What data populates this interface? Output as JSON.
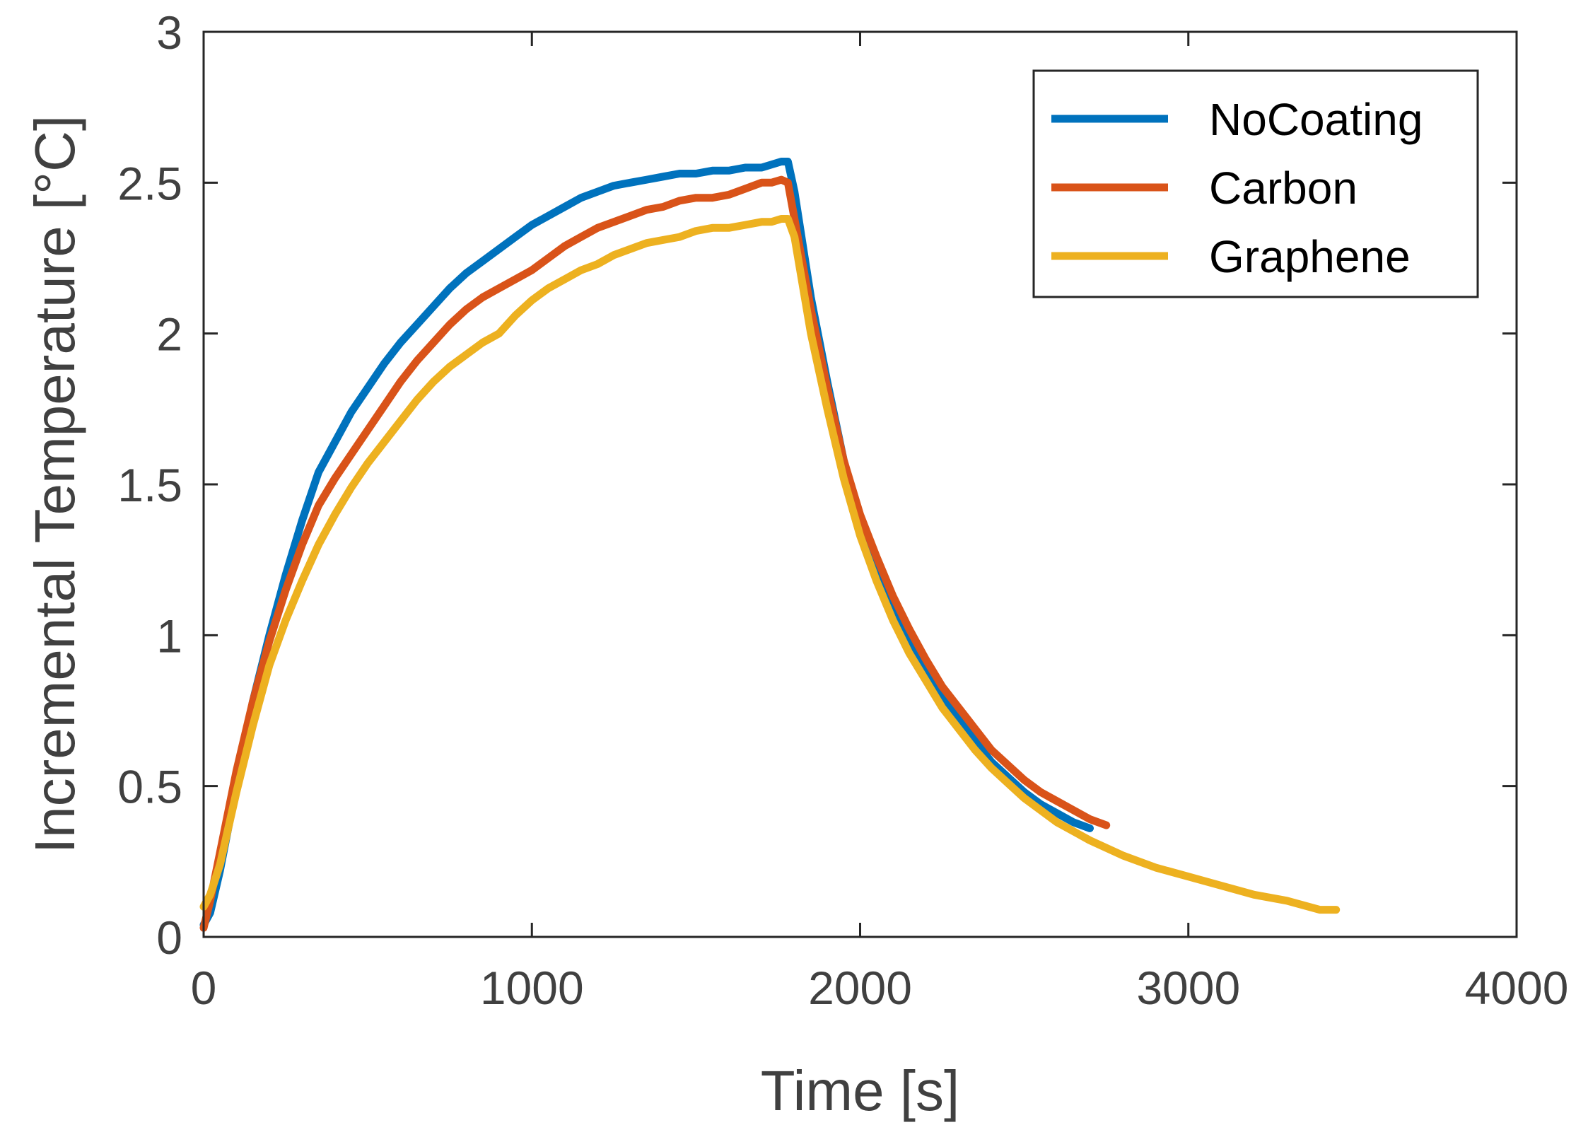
{
  "chart_data": {
    "type": "line",
    "title": "",
    "xlabel": "Time [s]",
    "ylabel": "Incremental Temperature [°C]",
    "xlim": [
      0,
      4000
    ],
    "ylim": [
      0,
      3
    ],
    "xticks": [
      0,
      1000,
      2000,
      3000,
      4000
    ],
    "yticks": [
      0,
      0.5,
      1,
      1.5,
      2,
      2.5,
      3
    ],
    "xtick_labels": [
      "0",
      "1000",
      "2000",
      "3000",
      "4000"
    ],
    "ytick_labels": [
      "0",
      "0.5",
      "1",
      "1.5",
      "2",
      "2.5",
      "3"
    ],
    "grid": false,
    "legend": {
      "position": "top-right",
      "entries": [
        "NoCoating",
        "Carbon",
        "Graphene"
      ]
    },
    "series": [
      {
        "name": "NoCoating",
        "color": "#0072BD",
        "x": [
          0,
          20,
          50,
          100,
          150,
          200,
          250,
          300,
          350,
          400,
          450,
          500,
          550,
          600,
          650,
          700,
          750,
          800,
          850,
          900,
          950,
          1000,
          1050,
          1100,
          1150,
          1200,
          1250,
          1300,
          1350,
          1400,
          1450,
          1500,
          1550,
          1600,
          1650,
          1700,
          1730,
          1760,
          1780,
          1800,
          1850,
          1900,
          1950,
          2000,
          2050,
          2100,
          2150,
          2200,
          2250,
          2300,
          2350,
          2400,
          2450,
          2500,
          2550,
          2600,
          2650,
          2700
        ],
        "y": [
          0.04,
          0.08,
          0.22,
          0.5,
          0.78,
          1.0,
          1.2,
          1.38,
          1.54,
          1.64,
          1.74,
          1.82,
          1.9,
          1.97,
          2.03,
          2.09,
          2.15,
          2.2,
          2.24,
          2.28,
          2.32,
          2.36,
          2.39,
          2.42,
          2.45,
          2.47,
          2.49,
          2.5,
          2.51,
          2.52,
          2.53,
          2.53,
          2.54,
          2.54,
          2.55,
          2.55,
          2.56,
          2.57,
          2.57,
          2.47,
          2.12,
          1.84,
          1.58,
          1.38,
          1.22,
          1.09,
          0.97,
          0.88,
          0.8,
          0.72,
          0.65,
          0.58,
          0.53,
          0.48,
          0.44,
          0.41,
          0.38,
          0.36
        ]
      },
      {
        "name": "Carbon",
        "color": "#D95319",
        "x": [
          0,
          20,
          50,
          100,
          150,
          200,
          250,
          300,
          350,
          400,
          450,
          500,
          550,
          600,
          650,
          700,
          750,
          800,
          850,
          900,
          950,
          1000,
          1050,
          1100,
          1150,
          1200,
          1250,
          1300,
          1350,
          1400,
          1450,
          1500,
          1550,
          1600,
          1650,
          1700,
          1730,
          1760,
          1780,
          1800,
          1850,
          1900,
          1950,
          2000,
          2050,
          2100,
          2150,
          2200,
          2250,
          2300,
          2350,
          2400,
          2450,
          2500,
          2550,
          2600,
          2650,
          2700,
          2750
        ],
        "y": [
          0.03,
          0.12,
          0.28,
          0.55,
          0.78,
          0.98,
          1.15,
          1.3,
          1.43,
          1.52,
          1.6,
          1.68,
          1.76,
          1.84,
          1.91,
          1.97,
          2.03,
          2.08,
          2.12,
          2.15,
          2.18,
          2.21,
          2.25,
          2.29,
          2.32,
          2.35,
          2.37,
          2.39,
          2.41,
          2.42,
          2.44,
          2.45,
          2.45,
          2.46,
          2.48,
          2.5,
          2.5,
          2.51,
          2.5,
          2.38,
          2.08,
          1.82,
          1.58,
          1.4,
          1.26,
          1.13,
          1.02,
          0.92,
          0.83,
          0.76,
          0.69,
          0.62,
          0.57,
          0.52,
          0.48,
          0.45,
          0.42,
          0.39,
          0.37
        ]
      },
      {
        "name": "Graphene",
        "color": "#EDB120",
        "x": [
          0,
          20,
          50,
          100,
          150,
          200,
          250,
          300,
          350,
          400,
          450,
          500,
          550,
          600,
          650,
          700,
          750,
          800,
          850,
          900,
          950,
          1000,
          1050,
          1100,
          1150,
          1200,
          1250,
          1300,
          1350,
          1400,
          1450,
          1500,
          1550,
          1600,
          1650,
          1700,
          1730,
          1760,
          1780,
          1800,
          1850,
          1900,
          1950,
          2000,
          2050,
          2100,
          2150,
          2200,
          2250,
          2300,
          2350,
          2400,
          2450,
          2500,
          2550,
          2600,
          2650,
          2700,
          2800,
          2900,
          3000,
          3100,
          3200,
          3300,
          3400,
          3450
        ],
        "y": [
          0.1,
          0.14,
          0.24,
          0.48,
          0.7,
          0.9,
          1.05,
          1.18,
          1.3,
          1.4,
          1.49,
          1.57,
          1.64,
          1.71,
          1.78,
          1.84,
          1.89,
          1.93,
          1.97,
          2.0,
          2.06,
          2.11,
          2.15,
          2.18,
          2.21,
          2.23,
          2.26,
          2.28,
          2.3,
          2.31,
          2.32,
          2.34,
          2.35,
          2.35,
          2.36,
          2.37,
          2.37,
          2.38,
          2.38,
          2.32,
          2.0,
          1.75,
          1.52,
          1.33,
          1.18,
          1.05,
          0.94,
          0.85,
          0.76,
          0.69,
          0.62,
          0.56,
          0.51,
          0.46,
          0.42,
          0.38,
          0.35,
          0.32,
          0.27,
          0.23,
          0.2,
          0.17,
          0.14,
          0.12,
          0.09,
          0.09
        ]
      }
    ]
  }
}
